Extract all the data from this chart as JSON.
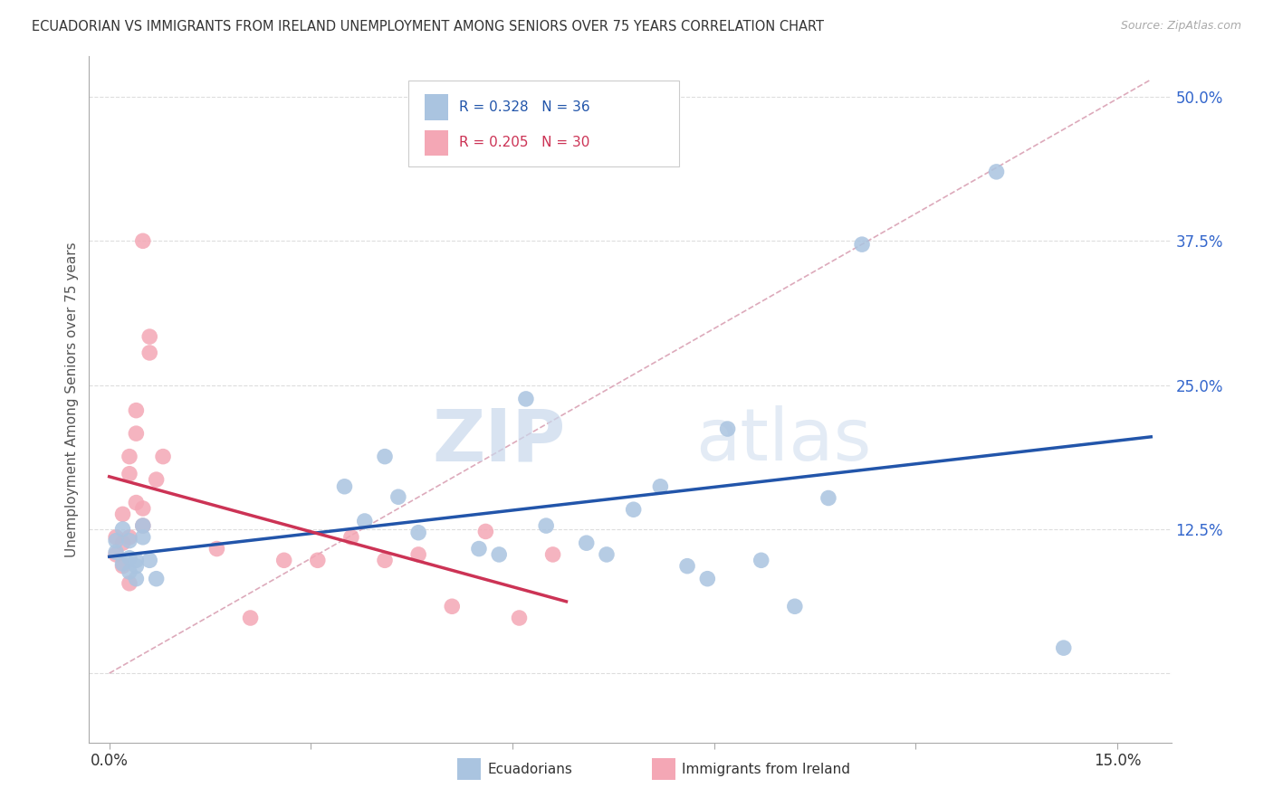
{
  "title": "ECUADORIAN VS IMMIGRANTS FROM IRELAND UNEMPLOYMENT AMONG SENIORS OVER 75 YEARS CORRELATION CHART",
  "source": "Source: ZipAtlas.com",
  "ylabel": "Unemployment Among Seniors over 75 years",
  "x_ticks": [
    0.0,
    0.03,
    0.06,
    0.09,
    0.12,
    0.15
  ],
  "x_tick_labels": [
    "0.0%",
    "",
    "",
    "",
    "",
    "15.0%"
  ],
  "y_ticks": [
    0.0,
    0.125,
    0.25,
    0.375,
    0.5
  ],
  "y_tick_labels": [
    "",
    "12.5%",
    "25.0%",
    "37.5%",
    "50.0%"
  ],
  "xlim": [
    -0.003,
    0.158
  ],
  "ylim": [
    -0.06,
    0.535
  ],
  "background_color": "#ffffff",
  "watermark_zip": "ZIP",
  "watermark_atlas": "atlas",
  "legend_text1": "R = 0.328   N = 36",
  "legend_text2": "R = 0.205   N = 30",
  "legend_label1": "Ecuadorians",
  "legend_label2": "Immigrants from Ireland",
  "color_blue": "#aac4e0",
  "color_blue_edge": "#aac4e0",
  "color_pink": "#f4a7b5",
  "color_pink_edge": "#f4a7b5",
  "color_blue_line": "#2255aa",
  "color_pink_line": "#cc3355",
  "color_diag_line": "#ddaabb",
  "color_grid": "#dddddd",
  "ecuadorians_x": [
    0.001,
    0.001,
    0.002,
    0.002,
    0.003,
    0.003,
    0.003,
    0.004,
    0.004,
    0.004,
    0.005,
    0.005,
    0.006,
    0.007,
    0.035,
    0.038,
    0.041,
    0.043,
    0.046,
    0.055,
    0.058,
    0.062,
    0.065,
    0.071,
    0.074,
    0.078,
    0.082,
    0.086,
    0.089,
    0.092,
    0.097,
    0.102,
    0.107,
    0.112,
    0.132,
    0.142
  ],
  "ecuadorians_y": [
    0.115,
    0.105,
    0.125,
    0.095,
    0.115,
    0.1,
    0.088,
    0.098,
    0.093,
    0.082,
    0.118,
    0.128,
    0.098,
    0.082,
    0.162,
    0.132,
    0.188,
    0.153,
    0.122,
    0.108,
    0.103,
    0.238,
    0.128,
    0.113,
    0.103,
    0.142,
    0.162,
    0.093,
    0.082,
    0.212,
    0.098,
    0.058,
    0.152,
    0.372,
    0.435,
    0.022
  ],
  "ireland_x": [
    0.001,
    0.001,
    0.002,
    0.002,
    0.002,
    0.003,
    0.003,
    0.003,
    0.003,
    0.004,
    0.004,
    0.004,
    0.005,
    0.005,
    0.005,
    0.006,
    0.006,
    0.007,
    0.008,
    0.016,
    0.021,
    0.026,
    0.031,
    0.036,
    0.041,
    0.046,
    0.051,
    0.056,
    0.061,
    0.066
  ],
  "ireland_y": [
    0.118,
    0.103,
    0.093,
    0.113,
    0.138,
    0.078,
    0.118,
    0.173,
    0.188,
    0.148,
    0.208,
    0.228,
    0.128,
    0.143,
    0.375,
    0.292,
    0.278,
    0.168,
    0.188,
    0.108,
    0.048,
    0.098,
    0.098,
    0.118,
    0.098,
    0.103,
    0.058,
    0.123,
    0.048,
    0.103
  ]
}
